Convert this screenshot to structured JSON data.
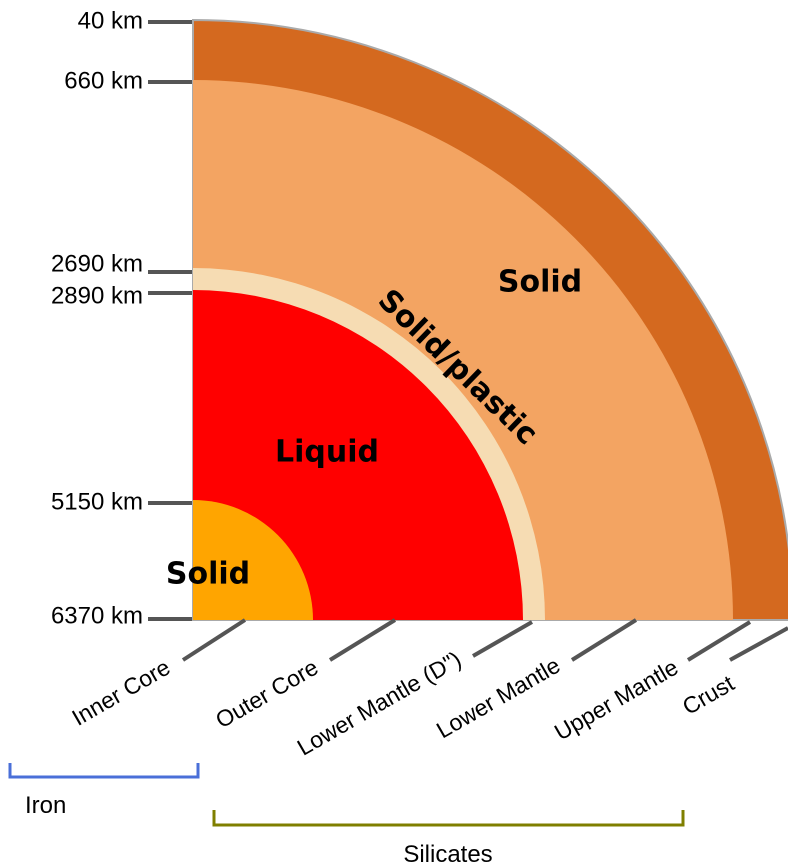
{
  "depths": [
    "40 km",
    "660 km",
    "2690 km",
    "2890 km",
    "5150 km",
    "6370 km"
  ],
  "layers": [
    "Inner Core",
    "Outer Core",
    "Lower Mantle (D\")",
    "Lower Mantle",
    "Upper Mantle",
    "Crust"
  ],
  "states": {
    "crust_mantle": "Solid",
    "d_layer": "Solid/plastic",
    "outer_core": "Liquid",
    "inner_core": "Solid"
  },
  "groups": {
    "iron": "Iron",
    "silicates": "Silicates"
  }
}
